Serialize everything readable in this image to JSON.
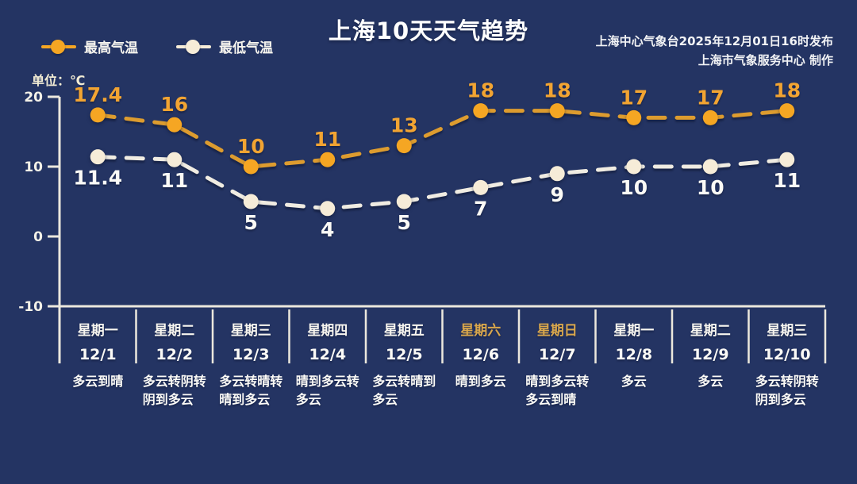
{
  "header": {
    "title": "上海10天天气趋势",
    "publisher_line1": "上海中心气象台2025年12月01日16时发布",
    "publisher_line2": "上海市气象服务中心  制作"
  },
  "unit_label": "单位：℃",
  "legend": [
    {
      "label": "最高气温",
      "color": "#f5a623"
    },
    {
      "label": "最低气温",
      "color": "#f6ecd8"
    }
  ],
  "colors": {
    "background": "#243463",
    "axis": "#ece8dd",
    "high_line": "#dd9c2f",
    "high_marker": "#f5a623",
    "high_label": "#f2a432",
    "low_line": "#f0ece2",
    "low_marker": "#f6ecd8",
    "low_label": "#fbfaf6",
    "weekend_label": "#d9a74c"
  },
  "chart_data": {
    "type": "line",
    "title": "上海10天天气趋势",
    "ylabel": "℃",
    "ylim": [
      -10,
      20
    ],
    "y_ticks": [
      20,
      10,
      0,
      -10
    ],
    "grid": false,
    "legend_position": "top-left",
    "categories": [
      {
        "weekday": "星期一",
        "date": "12/1",
        "weather": "多云到晴",
        "weekend": false
      },
      {
        "weekday": "星期二",
        "date": "12/2",
        "weather": "多云转阴转阴到多云",
        "weekend": false
      },
      {
        "weekday": "星期三",
        "date": "12/3",
        "weather": "多云转晴转晴到多云",
        "weekend": false
      },
      {
        "weekday": "星期四",
        "date": "12/4",
        "weather": "晴到多云转多云",
        "weekend": false
      },
      {
        "weekday": "星期五",
        "date": "12/5",
        "weather": "多云转晴到多云",
        "weekend": false
      },
      {
        "weekday": "星期六",
        "date": "12/6",
        "weather": "晴到多云",
        "weekend": true
      },
      {
        "weekday": "星期日",
        "date": "12/7",
        "weather": "晴到多云转多云到晴",
        "weekend": true
      },
      {
        "weekday": "星期一",
        "date": "12/8",
        "weather": "多云",
        "weekend": false
      },
      {
        "weekday": "星期二",
        "date": "12/9",
        "weather": "多云",
        "weekend": false
      },
      {
        "weekday": "星期三",
        "date": "12/10",
        "weather": "多云转阴转阴到多云",
        "weekend": false
      }
    ],
    "series": [
      {
        "name": "最高气温",
        "values": [
          17.4,
          16,
          10,
          11,
          13,
          18,
          18,
          17,
          17,
          18
        ]
      },
      {
        "name": "最低气温",
        "values": [
          11.4,
          11,
          5,
          4,
          5,
          7,
          9,
          10,
          10,
          11
        ]
      }
    ]
  }
}
